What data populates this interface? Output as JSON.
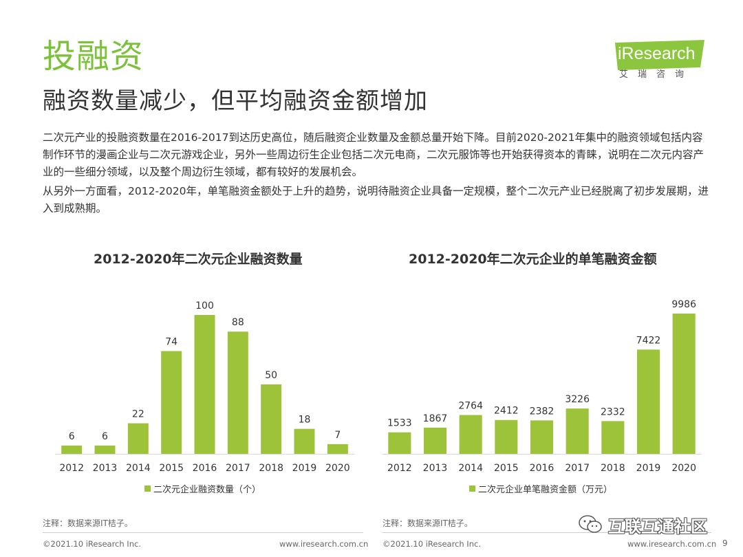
{
  "header": {
    "title": "投融资",
    "subtitle": "融资数量减少，但平均融资金额增加"
  },
  "logo": {
    "name": "iResearch",
    "sub": "艾瑞咨询",
    "color": "#8cc63f"
  },
  "body": {
    "p1": "二次元产业的投融资数量在2016-2017到达历史高位，随后融资企业数量及金额总量开始下降。目前2020-2021年集中的融资领域包括内容制作环节的漫画企业与二次元游戏企业，另外一些周边衍生企业包括二次元电商，二次元服饰等也开始获得资本的青睐，说明在二次元内容产业的一些细分领域，以及整个周边衍生领域，都有较好的发展机会。",
    "p2": "从另外一方面看，2012-2020年，单笔融资金额处于上升的趋势，说明待融资企业具备一定规模，整个二次元产业已经脱离了初步发展期，进入到成熟期。"
  },
  "chart_data": [
    {
      "type": "bar",
      "title": "2012-2020年二次元企业融资数量",
      "categories": [
        "2012",
        "2013",
        "2014",
        "2015",
        "2016",
        "2017",
        "2018",
        "2019",
        "2020"
      ],
      "series": [
        {
          "name": "二次元企业融资数量（个）",
          "values": [
            6,
            6,
            22,
            74,
            100,
            88,
            50,
            18,
            7
          ]
        }
      ],
      "ylim": [
        0,
        100
      ],
      "color": "#9dc33b",
      "legend": "bottom",
      "grid": false
    },
    {
      "type": "bar",
      "title": "2012-2020年二次元企业的单笔融资金额",
      "categories": [
        "2012",
        "2013",
        "2014",
        "2015",
        "2016",
        "2017",
        "2018",
        "2019",
        "2020"
      ],
      "series": [
        {
          "name": "二次元企业单笔融资金额（万元）",
          "values": [
            1533,
            1867,
            2764,
            2412,
            2382,
            3226,
            2332,
            7422,
            9986
          ]
        }
      ],
      "ylim": [
        0,
        9986
      ],
      "color": "#9dc33b",
      "legend": "bottom",
      "grid": false
    }
  ],
  "notes": {
    "left": "注释：数据来源IT桔子。",
    "right": "注释：数据来源IT桔子。"
  },
  "footer": {
    "copyright": "©2021.10 iResearch Inc.",
    "url": "www.iresearch.com.cn",
    "page": "9"
  },
  "watermark": {
    "icon": "wechat-icon",
    "text": "互联互通社区"
  }
}
